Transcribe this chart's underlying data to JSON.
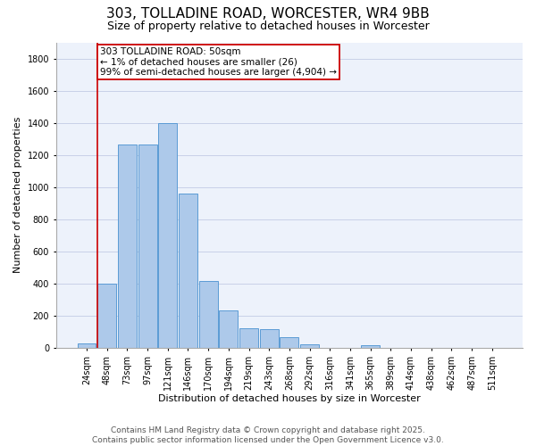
{
  "title": "303, TOLLADINE ROAD, WORCESTER, WR4 9BB",
  "subtitle": "Size of property relative to detached houses in Worcester",
  "xlabel": "Distribution of detached houses by size in Worcester",
  "ylabel": "Number of detached properties",
  "categories": [
    "24sqm",
    "48sqm",
    "73sqm",
    "97sqm",
    "121sqm",
    "146sqm",
    "170sqm",
    "194sqm",
    "219sqm",
    "243sqm",
    "268sqm",
    "292sqm",
    "316sqm",
    "341sqm",
    "365sqm",
    "389sqm",
    "414sqm",
    "438sqm",
    "462sqm",
    "487sqm",
    "511sqm"
  ],
  "values": [
    25,
    400,
    1265,
    1265,
    1400,
    960,
    415,
    235,
    120,
    115,
    65,
    20,
    0,
    0,
    15,
    0,
    0,
    0,
    0,
    0,
    0
  ],
  "bar_color": "#adc9ea",
  "bar_edge_color": "#5b9bd5",
  "background_color": "#edf2fb",
  "grid_color": "#c8d0e8",
  "annotation_box_text": "303 TOLLADINE ROAD: 50sqm\n← 1% of detached houses are smaller (26)\n99% of semi-detached houses are larger (4,904) →",
  "annotation_box_color": "#cc0000",
  "vline_x_index": 1,
  "ylim": [
    0,
    1900
  ],
  "yticks": [
    0,
    200,
    400,
    600,
    800,
    1000,
    1200,
    1400,
    1600,
    1800
  ],
  "footer_line1": "Contains HM Land Registry data © Crown copyright and database right 2025.",
  "footer_line2": "Contains public sector information licensed under the Open Government Licence v3.0.",
  "title_fontsize": 11,
  "subtitle_fontsize": 9,
  "axis_label_fontsize": 8,
  "tick_fontsize": 7,
  "annotation_fontsize": 7.5,
  "footer_fontsize": 6.5
}
